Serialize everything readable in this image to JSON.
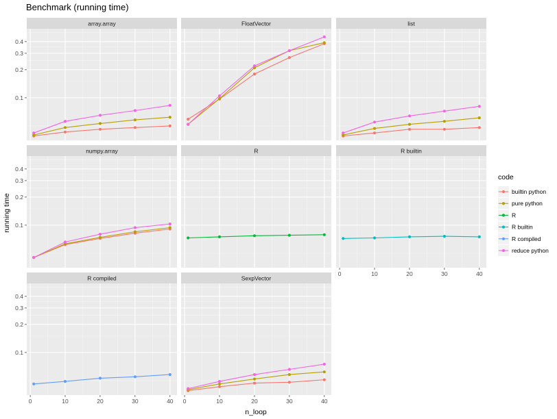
{
  "chart_data": {
    "type": "line",
    "title": "Benchmark (running time)",
    "xlabel": "n_loop",
    "ylabel": "running time",
    "y_scale": "log",
    "ylim": [
      0.035,
      0.55
    ],
    "xlim": [
      -1,
      42
    ],
    "x_ticks": [
      0,
      10,
      20,
      30,
      40
    ],
    "y_ticks": [
      0.1,
      0.2,
      0.3,
      0.4
    ],
    "y_tick_labels": [
      "0.1",
      "0.2",
      "0.3",
      "0.4"
    ],
    "grid": true,
    "legend_title": "code",
    "legend_position": "right",
    "legend": [
      {
        "key": "builtin python",
        "label": "builtin python",
        "color": "#F8766D"
      },
      {
        "key": "pure python",
        "label": "pure python",
        "color": "#B79F00"
      },
      {
        "key": "R",
        "label": "R",
        "color": "#00BA38"
      },
      {
        "key": "R builtin",
        "label": "R builtin",
        "color": "#00BFC4"
      },
      {
        "key": "R compiled",
        "label": "R compiled",
        "color": "#619CFF"
      },
      {
        "key": "reduce python",
        "label": "reduce python",
        "color": "#F564E3"
      }
    ],
    "x": [
      1,
      10,
      20,
      30,
      40
    ],
    "panels": [
      {
        "name": "array.array",
        "series": [
          {
            "code": "builtin python",
            "values": [
              0.039,
              0.043,
              0.046,
              0.048,
              0.05
            ]
          },
          {
            "code": "pure python",
            "values": [
              0.04,
              0.048,
              0.053,
              0.058,
              0.062
            ]
          },
          {
            "code": "reduce python",
            "values": [
              0.042,
              0.056,
              0.065,
              0.073,
              0.083
            ]
          }
        ]
      },
      {
        "name": "FloatVector",
        "series": [
          {
            "code": "builtin python",
            "values": [
              0.059,
              0.097,
              0.18,
              0.27,
              0.38
            ]
          },
          {
            "code": "pure python",
            "values": [
              0.052,
              0.098,
              0.21,
              0.32,
              0.39
            ]
          },
          {
            "code": "reduce python",
            "values": [
              0.052,
              0.105,
              0.22,
              0.32,
              0.45
            ]
          }
        ]
      },
      {
        "name": "list",
        "series": [
          {
            "code": "builtin python",
            "values": [
              0.039,
              0.042,
              0.046,
              0.046,
              0.048
            ]
          },
          {
            "code": "pure python",
            "values": [
              0.04,
              0.047,
              0.052,
              0.056,
              0.061
            ]
          },
          {
            "code": "reduce python",
            "values": [
              0.042,
              0.055,
              0.064,
              0.072,
              0.081
            ]
          }
        ]
      },
      {
        "name": "numpy.array",
        "series": [
          {
            "code": "builtin python",
            "values": [
              0.045,
              0.062,
              0.072,
              0.082,
              0.091
            ]
          },
          {
            "code": "pure python",
            "values": [
              0.045,
              0.063,
              0.074,
              0.085,
              0.094
            ]
          },
          {
            "code": "reduce python",
            "values": [
              0.045,
              0.066,
              0.08,
              0.094,
              0.103
            ]
          }
        ]
      },
      {
        "name": "R",
        "series": [
          {
            "code": "R",
            "values": [
              0.073,
              0.075,
              0.077,
              0.078,
              0.079
            ]
          }
        ]
      },
      {
        "name": "R builtin",
        "series": [
          {
            "code": "R builtin",
            "values": [
              0.072,
              0.073,
              0.075,
              0.076,
              0.075
            ]
          }
        ]
      },
      {
        "name": "R compiled",
        "series": [
          {
            "code": "R compiled",
            "values": [
              0.046,
              0.049,
              0.053,
              0.055,
              0.058
            ]
          }
        ]
      },
      {
        "name": "SexpVector",
        "series": [
          {
            "code": "builtin python",
            "values": [
              0.039,
              0.043,
              0.047,
              0.048,
              0.051
            ]
          },
          {
            "code": "pure python",
            "values": [
              0.04,
              0.046,
              0.052,
              0.058,
              0.062
            ]
          },
          {
            "code": "reduce python",
            "values": [
              0.041,
              0.049,
              0.058,
              0.066,
              0.075
            ]
          }
        ]
      }
    ]
  }
}
